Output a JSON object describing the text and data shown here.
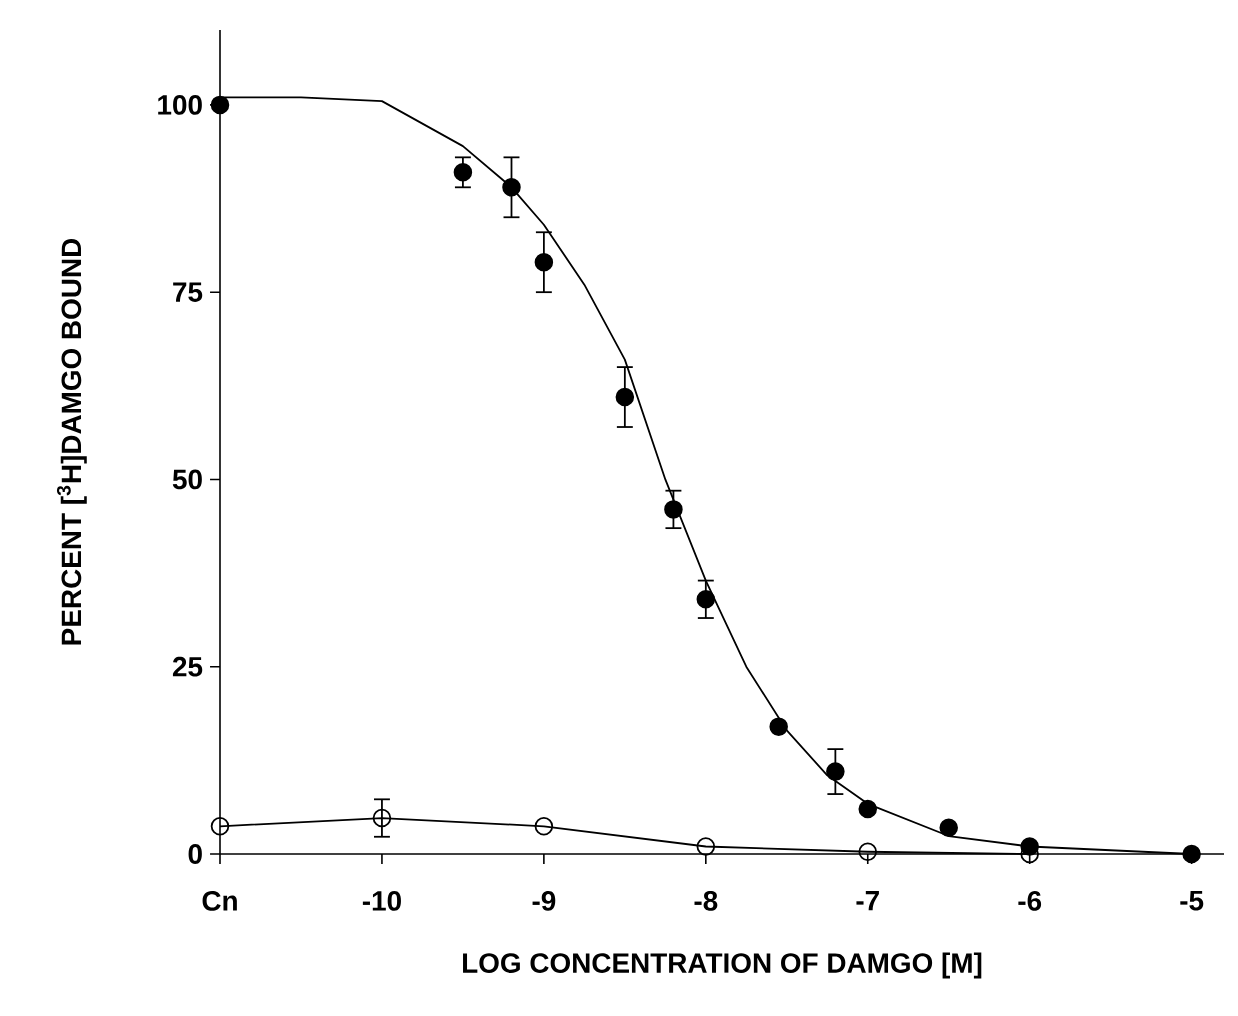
{
  "chart_data": {
    "type": "scatter",
    "xlabel": "LOG CONCENTRATION OF DAMGO [M]",
    "ylabel": "PERCENT [$^{3}$H]DAMGO BOUND",
    "xlim": [
      -11,
      -4.8
    ],
    "ylim": [
      0,
      110
    ],
    "xticks": [
      {
        "value": -11,
        "label": "Cn"
      },
      -10,
      -9,
      -8,
      -7,
      -6,
      -5
    ],
    "yticks": [
      0,
      25,
      50,
      75,
      100
    ],
    "grid": false,
    "series": [
      {
        "type": "scatter",
        "marker": "circle",
        "color": "#000000",
        "x": [
          -11,
          -9.5,
          -9.2,
          -9,
          -8.5,
          -8.2,
          -8,
          -7.55,
          -7.2,
          -7,
          -6.5,
          -6,
          -5
        ],
        "values": [
          100,
          91,
          89,
          79,
          61,
          46,
          34,
          17,
          11,
          6,
          3.5,
          1,
          0
        ],
        "errors": [
          null,
          2,
          4,
          4,
          4,
          2.5,
          2.5,
          null,
          3,
          null,
          null,
          null,
          null
        ]
      },
      {
        "type": "line",
        "marker": "none",
        "color": "#000000",
        "x": [
          -11,
          -10.5,
          -10,
          -9.5,
          -9.2,
          -9,
          -8.75,
          -8.5,
          -8.25,
          -8,
          -7.75,
          -7.5,
          -7.25,
          -7,
          -6.5,
          -6,
          -5
        ],
        "values": [
          101,
          101,
          100.5,
          94.5,
          89,
          84,
          76,
          66,
          50,
          36.5,
          25,
          16.5,
          10.5,
          6.7,
          2.4,
          1,
          0
        ]
      },
      {
        "type": "line",
        "marker": "open circle",
        "color": "#000000",
        "x": [
          -11,
          -10,
          -9,
          -8,
          -7,
          -6
        ],
        "values": [
          3.7,
          4.8,
          3.7,
          1,
          0.3,
          0
        ],
        "errors": [
          null,
          2.5,
          null,
          null,
          null,
          null
        ]
      }
    ]
  }
}
